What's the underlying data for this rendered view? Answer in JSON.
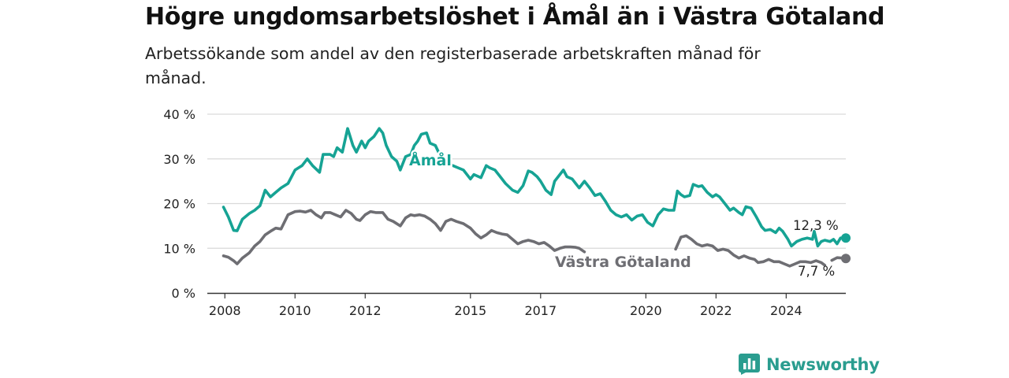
{
  "chart_data": {
    "type": "line",
    "title": "Högre ungdomsarbetslöshet i Åmål än i Västra Götaland",
    "subtitle": "Arbetssökande som andel av den registerbaserade arbetskraften månad för månad.",
    "xlabel": "",
    "ylabel": "",
    "x_ticks": [
      "2008",
      "2010",
      "2012",
      "2015",
      "2017",
      "2020",
      "2022",
      "2024"
    ],
    "y_ticks": [
      "0 %",
      "10 %",
      "20 %",
      "30 %",
      "40 %"
    ],
    "ylim": [
      0,
      40
    ],
    "xlim": [
      2007.5,
      2025.7
    ],
    "grid": true,
    "legend": "direct labels",
    "series": [
      {
        "name": "Åmål",
        "color": "#16a394",
        "end_label": "12,3 %",
        "points": [
          [
            2007.96,
            19.2
          ],
          [
            2008.1,
            17
          ],
          [
            2008.25,
            14
          ],
          [
            2008.35,
            13.9
          ],
          [
            2008.5,
            16.5
          ],
          [
            2008.7,
            17.8
          ],
          [
            2008.85,
            18.5
          ],
          [
            2009.0,
            19.5
          ],
          [
            2009.15,
            23
          ],
          [
            2009.3,
            21.5
          ],
          [
            2009.45,
            22.5
          ],
          [
            2009.6,
            23.5
          ],
          [
            2009.8,
            24.5
          ],
          [
            2010.0,
            27.5
          ],
          [
            2010.2,
            28.5
          ],
          [
            2010.35,
            30
          ],
          [
            2010.5,
            28.5
          ],
          [
            2010.7,
            27
          ],
          [
            2010.8,
            31
          ],
          [
            2011.0,
            31
          ],
          [
            2011.1,
            30.5
          ],
          [
            2011.2,
            32.5
          ],
          [
            2011.35,
            31.5
          ],
          [
            2011.5,
            36.8
          ],
          [
            2011.65,
            33
          ],
          [
            2011.75,
            31.5
          ],
          [
            2011.9,
            34
          ],
          [
            2012.0,
            32.5
          ],
          [
            2012.1,
            34
          ],
          [
            2012.25,
            35
          ],
          [
            2012.4,
            36.8
          ],
          [
            2012.5,
            35.8
          ],
          [
            2012.6,
            33
          ],
          [
            2012.75,
            30.5
          ],
          [
            2012.9,
            29.5
          ],
          [
            2013.0,
            27.5
          ],
          [
            2013.15,
            30.5
          ],
          [
            2013.3,
            31
          ],
          [
            2013.4,
            33
          ],
          [
            2013.5,
            34
          ],
          [
            2013.6,
            35.5
          ],
          [
            2013.75,
            35.8
          ],
          [
            2013.85,
            33.5
          ],
          [
            2014.0,
            33
          ],
          [
            2014.15,
            30.5
          ],
          [
            2014.3,
            29.5
          ]
        ],
        "points_b": [
          [
            2014.5,
            28.5
          ],
          [
            2014.65,
            28
          ],
          [
            2014.8,
            27.5
          ],
          [
            2015.0,
            25.5
          ],
          [
            2015.1,
            26.5
          ],
          [
            2015.3,
            25.8
          ],
          [
            2015.45,
            28.5
          ],
          [
            2015.55,
            28
          ],
          [
            2015.7,
            27.5
          ],
          [
            2015.85,
            26
          ],
          [
            2016.0,
            24.5
          ],
          [
            2016.2,
            23
          ],
          [
            2016.35,
            22.5
          ],
          [
            2016.5,
            24
          ],
          [
            2016.65,
            27.3
          ],
          [
            2016.75,
            27
          ],
          [
            2016.9,
            26
          ],
          [
            2017.0,
            25
          ],
          [
            2017.15,
            23
          ],
          [
            2017.3,
            22
          ],
          [
            2017.4,
            25
          ],
          [
            2017.5,
            26
          ],
          [
            2017.65,
            27.5
          ],
          [
            2017.75,
            26
          ],
          [
            2017.9,
            25.5
          ],
          [
            2018.0,
            24.5
          ],
          [
            2018.1,
            23.5
          ],
          [
            2018.25,
            25
          ],
          [
            2018.4,
            23.5
          ],
          [
            2018.55,
            21.8
          ],
          [
            2018.7,
            22.2
          ],
          [
            2018.85,
            20.5
          ],
          [
            2019.0,
            18.5
          ],
          [
            2019.15,
            17.5
          ],
          [
            2019.3,
            17
          ],
          [
            2019.45,
            17.5
          ],
          [
            2019.6,
            16.3
          ],
          [
            2019.75,
            17.2
          ],
          [
            2019.9,
            17.5
          ],
          [
            2020.05,
            15.8
          ],
          [
            2020.2,
            15
          ],
          [
            2020.35,
            17.5
          ],
          [
            2020.5,
            18.8
          ],
          [
            2020.65,
            18.5
          ],
          [
            2020.8,
            18.5
          ],
          [
            2020.9,
            22.8
          ],
          [
            2021.0,
            22
          ],
          [
            2021.1,
            21.5
          ],
          [
            2021.25,
            21.8
          ],
          [
            2021.35,
            24.3
          ],
          [
            2021.5,
            23.8
          ],
          [
            2021.6,
            24
          ],
          [
            2021.75,
            22.5
          ],
          [
            2021.9,
            21.5
          ],
          [
            2022.0,
            22
          ],
          [
            2022.1,
            21.5
          ],
          [
            2022.25,
            20
          ],
          [
            2022.4,
            18.5
          ],
          [
            2022.5,
            19
          ],
          [
            2022.65,
            18
          ],
          [
            2022.75,
            17.5
          ],
          [
            2022.85,
            19.3
          ],
          [
            2023.0,
            19
          ],
          [
            2023.15,
            17
          ],
          [
            2023.3,
            14.8
          ],
          [
            2023.4,
            14
          ],
          [
            2023.55,
            14.2
          ],
          [
            2023.7,
            13.5
          ],
          [
            2023.8,
            14.5
          ],
          [
            2023.9,
            13.8
          ],
          [
            2024.05,
            12
          ],
          [
            2024.15,
            10.5
          ],
          [
            2024.3,
            11.5
          ],
          [
            2024.45,
            12
          ],
          [
            2024.6,
            12.3
          ],
          [
            2024.75,
            12
          ],
          [
            2024.8,
            13.8
          ],
          [
            2024.9,
            10.5
          ],
          [
            2025.0,
            11.5
          ],
          [
            2025.1,
            11.8
          ],
          [
            2025.25,
            11.5
          ],
          [
            2025.35,
            12
          ],
          [
            2025.45,
            11
          ],
          [
            2025.55,
            12.3
          ],
          [
            2025.7,
            12.3
          ]
        ]
      },
      {
        "name": "Västra Götaland",
        "color": "#6e6e73",
        "end_label": "7,7 %",
        "points": [
          [
            2007.96,
            8.3
          ],
          [
            2008.1,
            8
          ],
          [
            2008.25,
            7.2
          ],
          [
            2008.35,
            6.5
          ],
          [
            2008.5,
            7.8
          ],
          [
            2008.7,
            9
          ],
          [
            2008.85,
            10.5
          ],
          [
            2009.0,
            11.5
          ],
          [
            2009.15,
            13
          ],
          [
            2009.3,
            13.8
          ],
          [
            2009.45,
            14.5
          ],
          [
            2009.6,
            14.3
          ],
          [
            2009.8,
            17.5
          ],
          [
            2010.0,
            18.2
          ],
          [
            2010.15,
            18.3
          ],
          [
            2010.3,
            18.1
          ],
          [
            2010.45,
            18.5
          ],
          [
            2010.6,
            17.5
          ],
          [
            2010.75,
            16.8
          ],
          [
            2010.85,
            18
          ],
          [
            2011.0,
            18
          ],
          [
            2011.15,
            17.5
          ],
          [
            2011.3,
            17
          ],
          [
            2011.45,
            18.5
          ],
          [
            2011.6,
            17.8
          ],
          [
            2011.75,
            16.5
          ],
          [
            2011.85,
            16.2
          ],
          [
            2012.0,
            17.5
          ],
          [
            2012.15,
            18.2
          ],
          [
            2012.3,
            18
          ],
          [
            2012.5,
            18
          ],
          [
            2012.65,
            16.5
          ],
          [
            2012.8,
            16
          ],
          [
            2013.0,
            15
          ],
          [
            2013.15,
            16.8
          ],
          [
            2013.3,
            17.5
          ],
          [
            2013.4,
            17.3
          ],
          [
            2013.55,
            17.5
          ],
          [
            2013.7,
            17.2
          ],
          [
            2013.85,
            16.5
          ],
          [
            2014.0,
            15.5
          ],
          [
            2014.15,
            14
          ],
          [
            2014.3,
            16
          ],
          [
            2014.45,
            16.5
          ],
          [
            2014.6,
            16
          ],
          [
            2014.8,
            15.5
          ],
          [
            2015.0,
            14.5
          ],
          [
            2015.15,
            13.2
          ],
          [
            2015.3,
            12.3
          ],
          [
            2015.45,
            13
          ],
          [
            2015.6,
            14
          ],
          [
            2015.75,
            13.5
          ],
          [
            2015.9,
            13.2
          ],
          [
            2016.05,
            13
          ],
          [
            2016.2,
            12
          ],
          [
            2016.35,
            11
          ],
          [
            2016.5,
            11.5
          ],
          [
            2016.65,
            11.8
          ],
          [
            2016.8,
            11.5
          ],
          [
            2016.95,
            11
          ],
          [
            2017.1,
            11.3
          ],
          [
            2017.25,
            10.5
          ],
          [
            2017.4,
            9.5
          ],
          [
            2017.55,
            10
          ],
          [
            2017.7,
            10.3
          ],
          [
            2017.85,
            10.3
          ],
          [
            2018.0,
            10.2
          ],
          [
            2018.1,
            10
          ],
          [
            2018.25,
            9.2
          ]
        ],
        "points_b": [
          [
            2020.85,
            9.8
          ],
          [
            2021.0,
            12.5
          ],
          [
            2021.15,
            12.8
          ],
          [
            2021.3,
            12
          ],
          [
            2021.45,
            11
          ],
          [
            2021.6,
            10.5
          ],
          [
            2021.75,
            10.8
          ],
          [
            2021.9,
            10.5
          ],
          [
            2022.05,
            9.5
          ],
          [
            2022.2,
            9.8
          ],
          [
            2022.35,
            9.5
          ],
          [
            2022.5,
            8.5
          ],
          [
            2022.65,
            7.8
          ],
          [
            2022.8,
            8.3
          ],
          [
            2022.95,
            7.8
          ],
          [
            2023.1,
            7.5
          ],
          [
            2023.2,
            6.8
          ],
          [
            2023.35,
            7
          ],
          [
            2023.5,
            7.5
          ],
          [
            2023.65,
            7
          ],
          [
            2023.8,
            7
          ],
          [
            2023.95,
            6.5
          ],
          [
            2024.1,
            6
          ],
          [
            2024.25,
            6.5
          ],
          [
            2024.4,
            7
          ],
          [
            2024.55,
            7
          ],
          [
            2024.7,
            6.8
          ],
          [
            2024.85,
            7.2
          ],
          [
            2025.0,
            6.8
          ],
          [
            2025.1,
            6.2
          ]
        ],
        "points_c": [
          [
            2025.3,
            7.3
          ],
          [
            2025.45,
            7.9
          ],
          [
            2025.6,
            7.8
          ],
          [
            2025.7,
            7.7
          ]
        ]
      }
    ]
  },
  "brand": {
    "name": "Newsworthy",
    "icon": "bar-chart-logo-icon",
    "color": "#2a9d8f"
  }
}
